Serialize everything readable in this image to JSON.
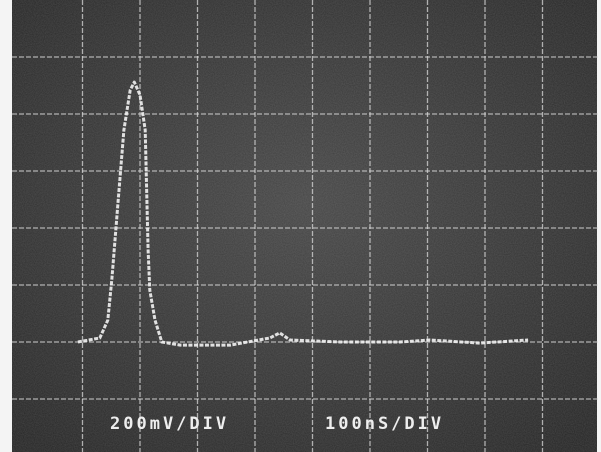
{
  "chart_data": {
    "type": "line",
    "labels": [
      "200mV/DIV",
      "100nS/DIV"
    ],
    "xlim": [
      0,
      1000
    ],
    "ylim": [
      0,
      1600
    ],
    "series": [
      {
        "name": "trace",
        "color": "#f2f2f2",
        "x": [
          92,
          130,
          144,
          151,
          162,
          172,
          183,
          190,
          200,
          209,
          214,
          217,
          226,
          238,
          270,
          357,
          426,
          443,
          461,
          548,
          652,
          704,
          791,
          875
        ],
        "values": [
          400,
          414,
          477,
          618,
          898,
          1144,
          1284,
          1312,
          1267,
          1144,
          723,
          582,
          477,
          400,
          389,
          389,
          414,
          432,
          407,
          400,
          400,
          407,
          396,
          407
        ]
      }
    ]
  }
}
